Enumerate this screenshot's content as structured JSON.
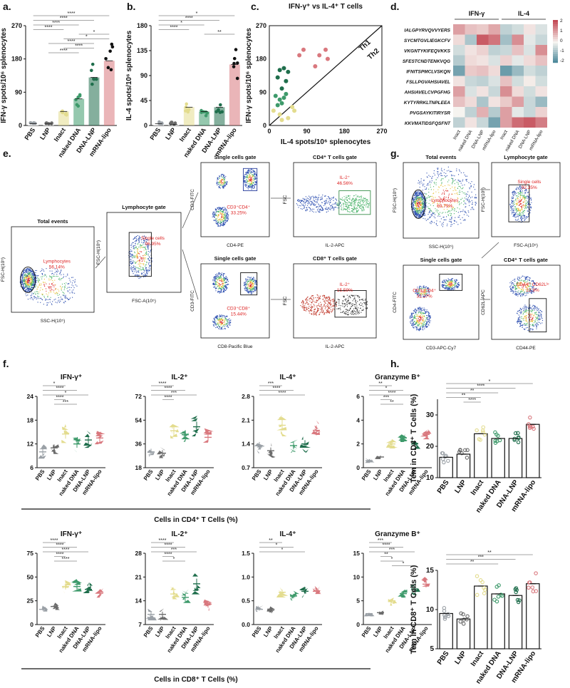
{
  "groups": [
    "PBS",
    "LNP",
    "Inact",
    "naked DNA",
    "DNA-LNP",
    "mRNA-lipo"
  ],
  "colors": {
    "PBS": "#9aa0a6",
    "LNP": "#6b6b6b",
    "Inact": "#e3dc8e",
    "naked DNA": "#3e9a6b",
    "DNA-LNP": "#1f6e4c",
    "mRNA-lipo": "#d9787e",
    "mRNA-lipo_a": "#e07a80",
    "a_black": "#111111",
    "heat_pos": "#c44a55",
    "heat_neg": "#3d7f93"
  },
  "panel_labels": {
    "a": "a.",
    "b": "b.",
    "c": "c.",
    "d": "d.",
    "e": "e.",
    "f": "f.",
    "g": "g.",
    "h": "h."
  },
  "chart_data": [
    {
      "id": "a",
      "type": "bar",
      "ylabel": "IFN-γ spots/10⁶ splenocytes",
      "ylim": [
        0,
        270
      ],
      "yticks": [
        "0",
        "90",
        "180",
        "270"
      ],
      "categories": [
        "PBS",
        "LNP",
        "Inact",
        "naked DNA",
        "DNA-LNP",
        "mRNA-lipo"
      ],
      "values": [
        5,
        4,
        38,
        72,
        130,
        175
      ],
      "sig": [
        "****",
        "****",
        "****",
        "****",
        "*",
        "*",
        "****",
        "****",
        "****"
      ]
    },
    {
      "id": "b",
      "type": "bar",
      "ylabel": "IL-4 spots/10⁶ splenocytes",
      "ylim": [
        0,
        180
      ],
      "yticks": [
        "0",
        "45",
        "90",
        "135",
        "180"
      ],
      "categories": [
        "PBS",
        "LNP",
        "Inact",
        "naked DNA",
        "DNA-LNP",
        "mRNA-lipo"
      ],
      "values": [
        3,
        2,
        33,
        25,
        33,
        110
      ],
      "sig": [
        "*",
        "****",
        "*",
        "****",
        "**"
      ]
    },
    {
      "id": "c",
      "type": "scatter",
      "title": "IFN-γ⁺ vs IL-4⁺ T cells",
      "xlabel": "IL-4 spots/10⁶ splenocytes",
      "ylabel": "IFN-γ spots/10⁶ splenocytes",
      "xlim": [
        0,
        270
      ],
      "ylim": [
        0,
        270
      ],
      "xticks": [
        "0",
        "90",
        "180",
        "270"
      ],
      "yticks": [
        "0",
        "90",
        "180",
        "270"
      ],
      "diag_labels": [
        "Th1",
        "Th2"
      ],
      "series": [
        {
          "name": "mRNA-lipo",
          "points": [
            [
              72,
              190
            ],
            [
              82,
              205
            ],
            [
              120,
              190
            ],
            [
              140,
              180
            ],
            [
              135,
              205
            ],
            [
              110,
              160
            ]
          ]
        },
        {
          "name": "DNA-LNP",
          "points": [
            [
              25,
              150
            ],
            [
              35,
              155
            ],
            [
              45,
              145
            ],
            [
              20,
              130
            ],
            [
              30,
              100
            ],
            [
              40,
              120
            ]
          ]
        },
        {
          "name": "naked DNA",
          "points": [
            [
              15,
              80
            ],
            [
              25,
              70
            ],
            [
              30,
              60
            ],
            [
              35,
              75
            ],
            [
              20,
              55
            ],
            [
              40,
              85
            ]
          ]
        },
        {
          "name": "Inact",
          "points": [
            [
              10,
              40
            ],
            [
              25,
              30
            ],
            [
              45,
              20
            ],
            [
              55,
              50
            ],
            [
              60,
              40
            ],
            [
              30,
              15
            ]
          ]
        }
      ]
    },
    {
      "id": "d",
      "type": "heatmap",
      "rows": [
        "IALGPYRVQVVYERS",
        "SYCMTGVLIEGKCFV",
        "VKGNTYKIFEQVKKS",
        "SFESTCNDTENKVQG",
        "IFNITSPMCLVSKQN",
        "FSLLPGVAHSIAVEL",
        "AHSIAVELCVPGFHG",
        "KYTYRRKLTNPLEEA",
        "PVGSAYKITIRYSR",
        "KKVMATIDSFQSFNT"
      ],
      "columns": [
        "Inact",
        "naked DNA",
        "DNA-LNP",
        "mRNA-lipo",
        "Inact",
        "naked DNA",
        "DNA-LNP",
        "mRNA-lipo"
      ],
      "group_labels": [
        "IFN-γ",
        "IL-4"
      ],
      "legend_ticks": [
        "2",
        "1",
        "0",
        "-1",
        "-2"
      ],
      "values": [
        [
          1.0,
          0.6,
          0.5,
          0.9,
          -0.6,
          -0.4,
          0.2,
          -0.3
        ],
        [
          0.3,
          -0.8,
          1.8,
          1.5,
          -0.9,
          1.2,
          -0.2,
          -0.5
        ],
        [
          -0.4,
          0.2,
          0.4,
          -0.6,
          -0.5,
          0.6,
          -0.3,
          1.2
        ],
        [
          -0.7,
          0.3,
          0.2,
          -0.3,
          0.4,
          -0.2,
          0.3,
          0.6
        ],
        [
          -1.4,
          0.5,
          0.6,
          0.3,
          -1.5,
          -1.0,
          -0.4,
          -0.6
        ],
        [
          0.2,
          -0.5,
          -0.6,
          -0.3,
          0.6,
          -0.4,
          0.1,
          -0.4
        ],
        [
          1.0,
          -0.3,
          0.2,
          -0.5,
          1.2,
          0.3,
          -0.4,
          0.2
        ],
        [
          0.6,
          0.3,
          -0.8,
          0.2,
          0.5,
          1.0,
          -0.5,
          -1.0
        ],
        [
          0.0,
          -0.6,
          0.8,
          -0.7,
          1.0,
          -0.2,
          -0.5,
          0.4
        ],
        [
          -0.6,
          0.2,
          -0.5,
          -1.4,
          1.0,
          1.6,
          1.8,
          1.4
        ]
      ]
    },
    {
      "id": "f",
      "type": "scatter",
      "panels": [
        {
          "title": "IFN-γ⁺",
          "ylim": [
            6,
            24
          ],
          "yticks": [
            "6",
            "12",
            "18",
            "24"
          ],
          "means": [
            10,
            11,
            14.5,
            12,
            13,
            13.5
          ],
          "sig": [
            "*",
            "****",
            "*",
            "****",
            "***"
          ]
        },
        {
          "title": "IL-2⁺",
          "ylim": [
            18,
            72
          ],
          "yticks": [
            "18",
            "36",
            "54",
            "72"
          ],
          "means": [
            30,
            29,
            46,
            43,
            49,
            41
          ],
          "sig": [
            "****",
            "****",
            "***",
            "****"
          ]
        },
        {
          "title": "IL-4⁺",
          "ylim": [
            0.7,
            2.8
          ],
          "yticks": [
            "0.7",
            "1.4",
            "2.1",
            "2.8"
          ],
          "means": [
            1.35,
            1.2,
            1.95,
            1.35,
            1.4,
            1.8
          ],
          "sig": [
            "***",
            "****",
            "****"
          ]
        },
        {
          "title": "Granzyme B⁺",
          "ylim": [
            0,
            6
          ],
          "yticks": [
            "0",
            "2",
            "4",
            "6"
          ],
          "means": [
            0.6,
            0.9,
            2.0,
            2.5,
            2.0,
            2.8
          ],
          "sig": [
            "**",
            "*",
            "****",
            "***",
            "**"
          ]
        }
      ],
      "caption": "Cells in CD4⁺ T Cells (%)"
    },
    {
      "id": "f2",
      "type": "scatter",
      "panels": [
        {
          "title": "IFN-γ⁺",
          "ylim": [
            0,
            75
          ],
          "yticks": [
            "0",
            "25",
            "50",
            "75"
          ],
          "means": [
            16,
            19,
            40,
            40,
            37,
            33
          ],
          "sig": [
            "****",
            "****",
            "****",
            "****",
            "****"
          ]
        },
        {
          "title": "IL-2⁺",
          "ylim": [
            7,
            28
          ],
          "yticks": [
            "7",
            "14",
            "21",
            "28"
          ],
          "means": [
            10,
            10,
            16,
            15,
            19,
            13
          ],
          "sig": [
            "****",
            "****",
            "***",
            "****",
            "*"
          ]
        },
        {
          "title": "IL-4⁺",
          "ylim": [
            0,
            1.5
          ],
          "yticks": [
            "0.0",
            "0.5",
            "1.0",
            "1.5"
          ],
          "means": [
            0.32,
            0.3,
            0.68,
            0.6,
            0.7,
            0.7
          ],
          "sig": [
            "**",
            "*",
            "*"
          ]
        },
        {
          "title": "Granzyme B⁺",
          "ylim": [
            0,
            15
          ],
          "yticks": [
            "0",
            "5",
            "10",
            "15"
          ],
          "means": [
            2.3,
            2.5,
            5,
            6.5,
            7.5,
            8.5
          ],
          "sig": [
            "***",
            "****",
            "***",
            "**",
            "*",
            "*"
          ]
        }
      ],
      "caption": "Cells in CD8⁺ T Cells (%)"
    },
    {
      "id": "h1",
      "type": "bar",
      "ylabel": "Tem in CD4⁺ T Cells (%)",
      "ylim": [
        10,
        35
      ],
      "yticks": [
        "10",
        "20",
        "30"
      ],
      "values": [
        16.5,
        17.5,
        24,
        22.5,
        22.5,
        27
      ],
      "sig": [
        "*",
        "****",
        "**",
        "**",
        "****"
      ]
    },
    {
      "id": "h2",
      "type": "bar",
      "ylabel": "Tem in CD8⁺ T Cells (%)",
      "ylim": [
        5,
        15
      ],
      "yticks": [
        "5",
        "10",
        "15"
      ],
      "values": [
        9.5,
        8.8,
        13,
        12,
        11.8,
        13.3
      ],
      "sig": [
        "**",
        "***",
        "**"
      ]
    }
  ],
  "flow_e": {
    "total": {
      "title": "Total events",
      "gate": "Lymphocytes",
      "pct": "56.14%",
      "xlabel": "SSC-H(10⁵)",
      "ylabel": "FSC-H(10⁵)",
      "xticks": [
        "3.6",
        "80",
        "160",
        "240",
        "320",
        "400"
      ]
    },
    "lymph": {
      "title": "Lymphocyte gate",
      "gate": "Single cells",
      "pct": "96.95%",
      "xlabel": "FSC-A(10⁵)",
      "ylabel": "FSC-H(10⁵)",
      "xticks": [
        "0",
        "0.4",
        "0.8",
        "1.2",
        "1.6",
        "2.0"
      ]
    },
    "single_top": {
      "title": "Single cells gate",
      "gate": "CD3⁺CD4⁺",
      "pct": "33.25%",
      "xlabel": "CD4-PE",
      "ylabel": "CD3-FITC"
    },
    "cd4": {
      "title": "CD4⁺ T cells gate",
      "gate": "IL-2⁺",
      "pct": "46.56%",
      "xlabel": "IL-2-APC",
      "ylabel": "FSC"
    },
    "single_bot": {
      "title": "Single cells gate",
      "gate": "CD3⁺CD8⁺",
      "pct": "15.44%",
      "xlabel": "CD8-Pacific Blue",
      "ylabel": "CD3-FITC"
    },
    "cd8": {
      "title": "CD8⁺ T cells gate",
      "gate": "IL-2⁺",
      "pct": "15.59%",
      "xlabel": "IL-2-APC",
      "ylabel": "FSC"
    }
  },
  "flow_g": {
    "total": {
      "title": "Total events",
      "gate": "Lymphocytes",
      "pct": "69.79%",
      "xlabel": "SSC-H(10⁵)",
      "ylabel": "FSC-H(10⁵)"
    },
    "lymph": {
      "title": "Lymphocyte gate",
      "gate": "Single cells",
      "pct": "92.35%",
      "xlabel": "FSC-A(10⁵)",
      "ylabel": "FSC-H(10⁵)"
    },
    "single": {
      "title": "Single cells gate",
      "gate": "CD3⁺CD4⁺",
      "pct": "32.27%",
      "xlabel": "CD3-APC-Cy7",
      "ylabel": "CD4-FITC"
    },
    "cd4": {
      "title": "CD4⁺ T cells gate",
      "gate": "CD44ʰⁱ CD62Lˡᵒ",
      "pct": "22.9%",
      "xlabel": "CD44-PE",
      "ylabel": "CD62L-APC"
    }
  }
}
